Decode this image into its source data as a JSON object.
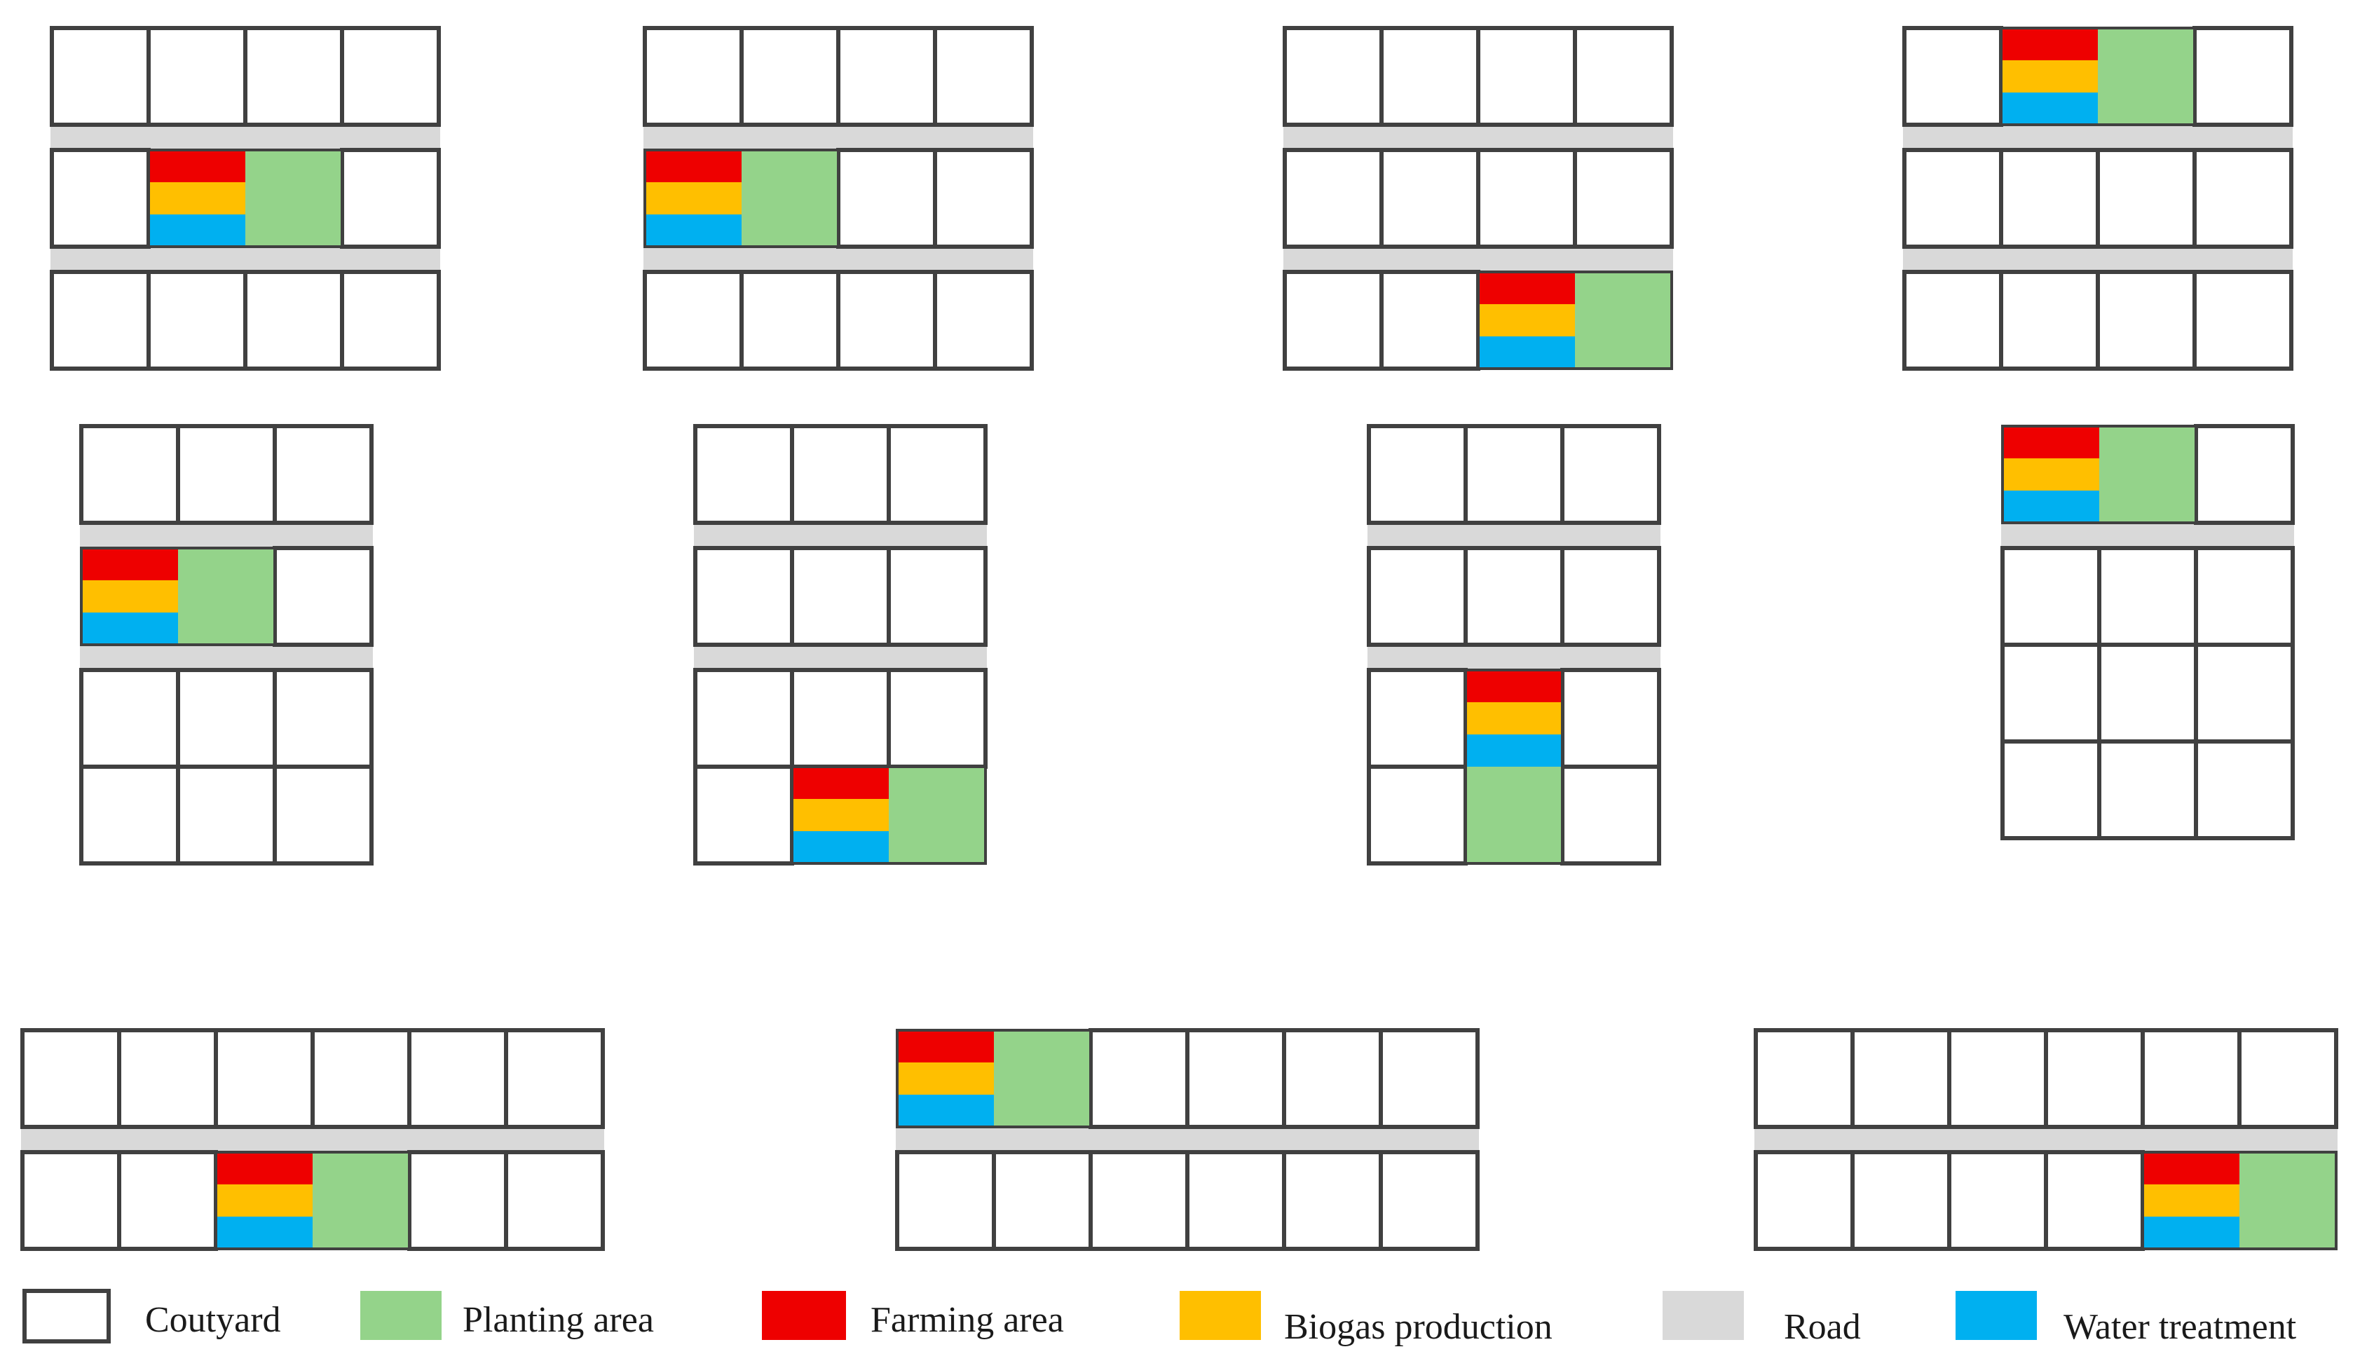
{
  "colors": {
    "courtyard_stroke": "#404040",
    "courtyard_fill": "#ffffff",
    "planting": "#94d38a",
    "farming": "#ee0000",
    "biogas": "#ffbf00",
    "road": "#d9d9d9",
    "water": "#00b0f0"
  },
  "legend": {
    "courtyard": "Coutyard",
    "planting": "Planting area",
    "farming": "Farming area",
    "biogas": "Biogas production",
    "road": "Road",
    "water": "Water treatment"
  },
  "layouts": [
    {
      "id": "layout-1",
      "cols": 4,
      "rows": 3,
      "road_after_rows": [
        1,
        2
      ],
      "facility": {
        "row": 2,
        "col": 2,
        "planting": "right"
      }
    },
    {
      "id": "layout-2",
      "cols": 4,
      "rows": 3,
      "road_after_rows": [
        1,
        2
      ],
      "facility": {
        "row": 2,
        "col": 1,
        "planting": "right"
      }
    },
    {
      "id": "layout-3",
      "cols": 4,
      "rows": 3,
      "road_after_rows": [
        1,
        2
      ],
      "facility": {
        "row": 3,
        "col": 3,
        "planting": "right"
      }
    },
    {
      "id": "layout-4",
      "cols": 4,
      "rows": 3,
      "road_after_rows": [
        1,
        2
      ],
      "facility": {
        "row": 1,
        "col": 2,
        "planting": "right"
      }
    },
    {
      "id": "layout-5",
      "cols": 3,
      "rows": 4,
      "road_after_rows": [
        1,
        2
      ],
      "facility": {
        "row": 2,
        "col": 1,
        "planting": "right"
      }
    },
    {
      "id": "layout-6",
      "cols": 3,
      "rows": 4,
      "road_after_rows": [
        1,
        2
      ],
      "facility": {
        "row": 4,
        "col": 2,
        "planting": "right"
      }
    },
    {
      "id": "layout-7",
      "cols": 3,
      "rows": 4,
      "road_after_rows": [
        1,
        2
      ],
      "facility": {
        "row": 3,
        "col": 2,
        "planting": "below"
      }
    },
    {
      "id": "layout-8",
      "cols": 3,
      "rows": 4,
      "road_after_rows": [
        1
      ],
      "facility": {
        "row": 1,
        "col": 1,
        "planting": "right"
      }
    },
    {
      "id": "layout-9",
      "cols": 6,
      "rows": 2,
      "road_after_rows": [
        1
      ],
      "facility": {
        "row": 2,
        "col": 3,
        "planting": "right"
      }
    },
    {
      "id": "layout-10",
      "cols": 6,
      "rows": 2,
      "road_after_rows": [
        1
      ],
      "facility": {
        "row": 1,
        "col": 1,
        "planting": "right"
      }
    },
    {
      "id": "layout-11",
      "cols": 6,
      "rows": 2,
      "road_after_rows": [
        1
      ],
      "facility": {
        "row": 2,
        "col": 5,
        "planting": "right"
      }
    }
  ]
}
